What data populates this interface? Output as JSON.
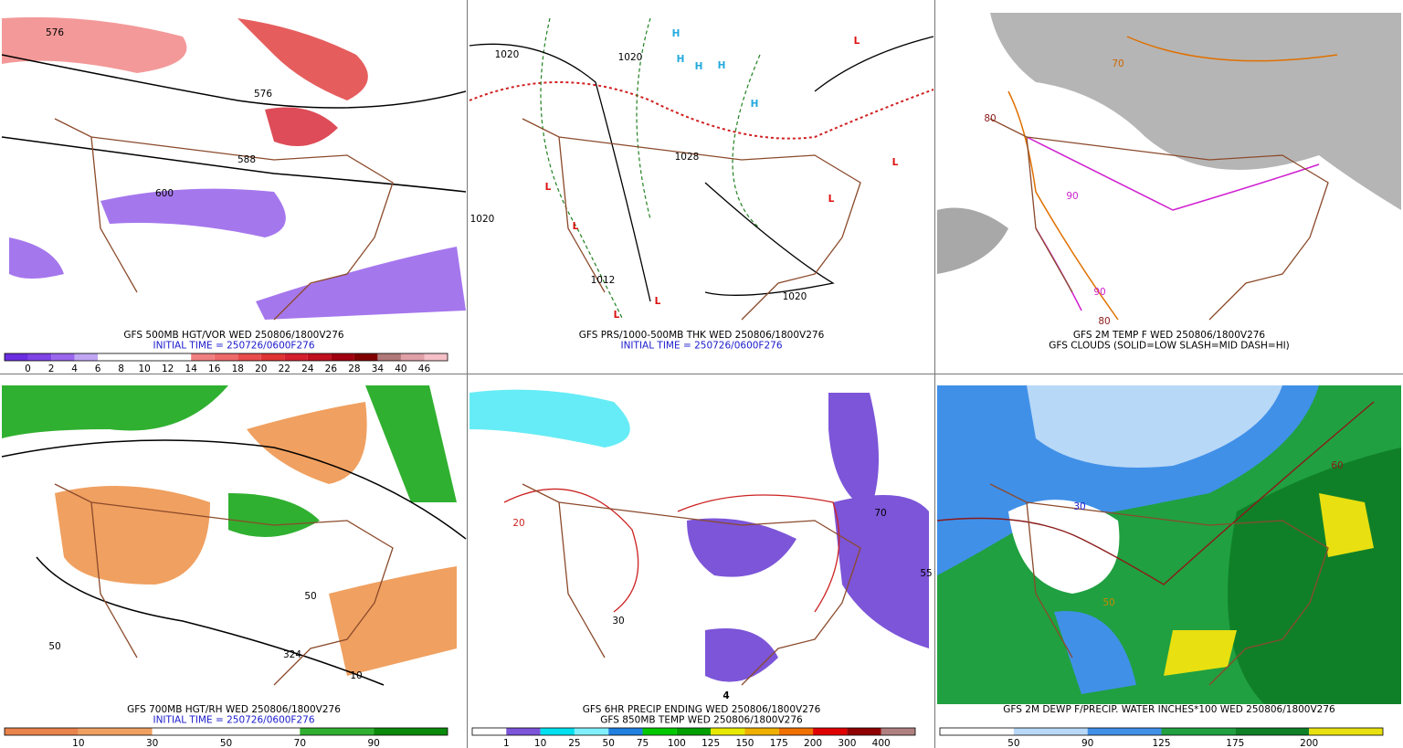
{
  "panels": [
    {
      "caption": [
        "GFS 500MB HGT/VOR WED 250806/1800V276",
        "INITIAL TIME = 250726/0600F276"
      ],
      "caption_colors": [
        "#000000",
        "#1a1acc"
      ],
      "colorbar": {
        "labels": [
          0,
          2,
          4,
          6,
          8,
          10,
          12,
          14,
          16,
          18,
          20,
          22,
          24,
          26,
          28,
          34,
          40,
          46
        ],
        "colors": [
          "#6a2ee0",
          "#7f44e6",
          "#9a66ec",
          "#c0a6f2",
          "#ffffff",
          "#ffffff",
          "#ffffff",
          "#ffffff",
          "#f08080",
          "#ee6a6a",
          "#e84c4c",
          "#e03434",
          "#d41f2e",
          "#c01020",
          "#a00010",
          "#800000",
          "#b07878",
          "#e0a0a8",
          "#f6c0c8"
        ]
      },
      "map_labels": [
        {
          "text": "576",
          "color": "#000000"
        },
        {
          "text": "576",
          "color": "#000000"
        },
        {
          "text": "588",
          "color": "#000000"
        },
        {
          "text": "600",
          "color": "#000000"
        }
      ]
    },
    {
      "caption": [
        "GFS PRS/1000-500MB THK WED 250806/1800V276",
        "INITIAL TIME = 250726/0600F276"
      ],
      "caption_colors": [
        "#000000",
        "#1a1acc"
      ],
      "map_labels": [
        {
          "text": "H",
          "color": "#22aadd"
        },
        {
          "text": "H",
          "color": "#22aadd"
        },
        {
          "text": "H",
          "color": "#22aadd"
        },
        {
          "text": "H",
          "color": "#22aadd"
        },
        {
          "text": "H",
          "color": "#22aadd"
        },
        {
          "text": "L",
          "color": "#dd1111"
        },
        {
          "text": "L",
          "color": "#dd1111"
        },
        {
          "text": "L",
          "color": "#dd1111"
        },
        {
          "text": "L",
          "color": "#dd1111"
        },
        {
          "text": "L",
          "color": "#dd1111"
        },
        {
          "text": "L",
          "color": "#dd1111"
        },
        {
          "text": "L",
          "color": "#dd1111"
        },
        {
          "text": "1020",
          "color": "#000000"
        },
        {
          "text": "1028",
          "color": "#000000"
        },
        {
          "text": "1020",
          "color": "#000000"
        },
        {
          "text": "1020",
          "color": "#000000"
        },
        {
          "text": "1012",
          "color": "#000000"
        },
        {
          "text": "1020",
          "color": "#000000"
        }
      ]
    },
    {
      "caption": [
        "GFS 2M TEMP F WED 250806/1800V276",
        "GFS CLOUDS (SOLID=LOW SLASH=MID DASH=HI)"
      ],
      "caption_colors": [
        "#000000",
        "#000000"
      ],
      "map_labels": [
        {
          "text": "80",
          "color": "#8b1a1a"
        },
        {
          "text": "70",
          "color": "#cc6600"
        },
        {
          "text": "90",
          "color": "#cc22cc"
        },
        {
          "text": "90",
          "color": "#cc22cc"
        },
        {
          "text": "80",
          "color": "#8b1a1a"
        }
      ]
    },
    {
      "caption": [
        "GFS 700MB HGT/RH WED 250806/1800V276",
        "INITIAL TIME = 250726/0600F276"
      ],
      "caption_colors": [
        "#000000",
        "#1a1acc"
      ],
      "colorbar": {
        "labels": [
          10,
          30,
          50,
          70,
          90
        ],
        "colors": [
          "#e8844c",
          "#f0a060",
          "#ffffff",
          "#ffffff",
          "#30b030",
          "#0a8a0a"
        ]
      },
      "map_labels": [
        {
          "text": "324",
          "color": "#000000"
        },
        {
          "text": "50",
          "color": "#000000"
        },
        {
          "text": "50",
          "color": "#000000"
        },
        {
          "text": "10",
          "color": "#000000"
        }
      ]
    },
    {
      "caption": [
        "GFS 6HR PRECIP ENDING WED 250806/1800V276",
        "GFS 850MB TEMP WED 250806/1800V276"
      ],
      "caption_colors": [
        "#000000",
        "#000000"
      ],
      "colorbar": {
        "labels": [
          1,
          10,
          25,
          50,
          75,
          100,
          125,
          150,
          175,
          200,
          300,
          400
        ],
        "colors": [
          "#ffffff",
          "#7c55d8",
          "#00e0f0",
          "#80f0ff",
          "#2080e0",
          "#00c800",
          "#00a000",
          "#e8e800",
          "#f0b000",
          "#f07000",
          "#e00000",
          "#900000",
          "#b08080"
        ]
      },
      "map_labels": [
        {
          "text": "20",
          "color": "#cc2222"
        },
        {
          "text": "30",
          "color": "#000000"
        },
        {
          "text": "70",
          "color": "#000000"
        },
        {
          "text": "55",
          "color": "#000000"
        },
        {
          "text": "4",
          "color": "#000000"
        }
      ]
    },
    {
      "caption": [
        "GFS 2M DEWP F/PRECIP. WATER INCHES*100 WED 250806/1800V276"
      ],
      "caption_colors": [
        "#000000"
      ],
      "colorbar": {
        "labels": [
          50,
          90,
          125,
          175,
          200
        ],
        "colors": [
          "#ffffff",
          "#b8d8f8",
          "#4090e8",
          "#20a040",
          "#108028",
          "#e8e010"
        ]
      },
      "map_labels": [
        {
          "text": "30",
          "color": "#1a1acc"
        },
        {
          "text": "50",
          "color": "#cc8800"
        },
        {
          "text": "60",
          "color": "#8b1a1a"
        }
      ]
    }
  ]
}
